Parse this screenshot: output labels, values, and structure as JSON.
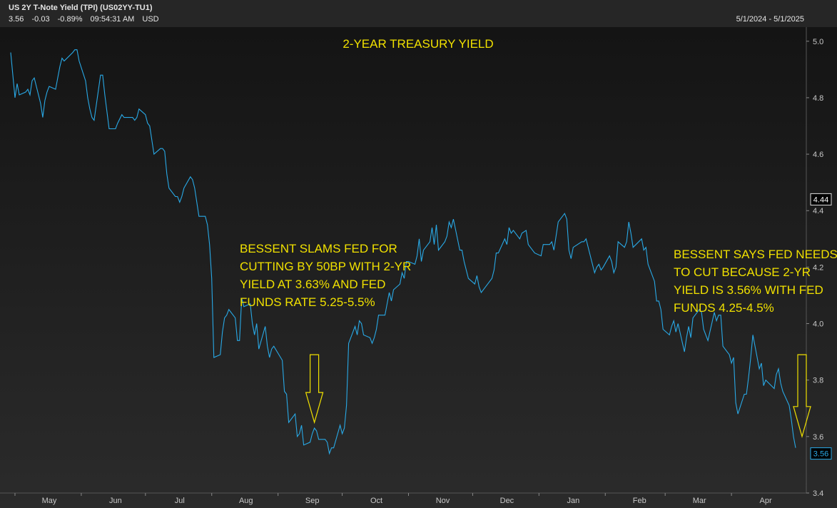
{
  "header": {
    "title": "US 2Y T-Note Yield (TPI) (US02YY-TU1)",
    "last": "3.56",
    "change": "-0.03",
    "change_pct": "-0.89%",
    "time": "09:54:31 AM",
    "currency": "USD",
    "date_range": "5/1/2024 - 5/1/2025"
  },
  "colors": {
    "line": "#29a9e6",
    "annotation": "#f0e000",
    "background": "#1c1c1c"
  },
  "chart_data": {
    "type": "line",
    "title": "2-YEAR TREASURY YIELD",
    "ylim": [
      3.4,
      5.05
    ],
    "y_ticks": [
      "3.4",
      "3.6",
      "3.8",
      "4.0",
      "4.2",
      "4.4",
      "4.6",
      "4.8",
      "5.0"
    ],
    "x_ticks": [
      {
        "label": "May",
        "date": "2024-05-01"
      },
      {
        "label": "Jun",
        "date": "2024-06-01"
      },
      {
        "label": "Jul",
        "date": "2024-07-01"
      },
      {
        "label": "Aug",
        "date": "2024-08-01"
      },
      {
        "label": "Sep",
        "date": "2024-09-01"
      },
      {
        "label": "Oct",
        "date": "2024-10-01"
      },
      {
        "label": "Nov",
        "date": "2024-11-01"
      },
      {
        "label": "Dec",
        "date": "2024-12-01"
      },
      {
        "label": "Jan",
        "date": "2025-01-01"
      },
      {
        "label": "Feb",
        "date": "2025-02-01"
      },
      {
        "label": "Mar",
        "date": "2025-03-01"
      },
      {
        "label": "Apr",
        "date": "2025-04-01"
      }
    ],
    "x_range": [
      "2024-04-24",
      "2025-05-06"
    ],
    "grid": false,
    "series": [
      {
        "values": [
          [
            "2024-04-29",
            4.96
          ],
          [
            "2024-04-30",
            4.88
          ],
          [
            "2024-05-01",
            4.8
          ],
          [
            "2024-05-02",
            4.85
          ],
          [
            "2024-05-03",
            4.81
          ],
          [
            "2024-05-06",
            4.82
          ],
          [
            "2024-05-07",
            4.83
          ],
          [
            "2024-05-08",
            4.81
          ],
          [
            "2024-05-09",
            4.86
          ],
          [
            "2024-05-10",
            4.87
          ],
          [
            "2024-05-13",
            4.78
          ],
          [
            "2024-05-14",
            4.73
          ],
          [
            "2024-05-15",
            4.79
          ],
          [
            "2024-05-16",
            4.82
          ],
          [
            "2024-05-17",
            4.84
          ],
          [
            "2024-05-20",
            4.83
          ],
          [
            "2024-05-21",
            4.87
          ],
          [
            "2024-05-22",
            4.91
          ],
          [
            "2024-05-23",
            4.94
          ],
          [
            "2024-05-24",
            4.93
          ],
          [
            "2024-05-28",
            4.96
          ],
          [
            "2024-05-29",
            4.97
          ],
          [
            "2024-05-30",
            4.97
          ],
          [
            "2024-05-31",
            4.93
          ],
          [
            "2024-06-03",
            4.86
          ],
          [
            "2024-06-04",
            4.8
          ],
          [
            "2024-06-05",
            4.76
          ],
          [
            "2024-06-06",
            4.73
          ],
          [
            "2024-06-07",
            4.72
          ],
          [
            "2024-06-10",
            4.88
          ],
          [
            "2024-06-11",
            4.88
          ],
          [
            "2024-06-12",
            4.81
          ],
          [
            "2024-06-13",
            4.75
          ],
          [
            "2024-06-14",
            4.69
          ],
          [
            "2024-06-17",
            4.69
          ],
          [
            "2024-06-18",
            4.71
          ],
          [
            "2024-06-20",
            4.74
          ],
          [
            "2024-06-21",
            4.73
          ],
          [
            "2024-06-24",
            4.73
          ],
          [
            "2024-06-25",
            4.73
          ],
          [
            "2024-06-26",
            4.72
          ],
          [
            "2024-06-27",
            4.73
          ],
          [
            "2024-06-28",
            4.76
          ],
          [
            "2024-07-01",
            4.74
          ],
          [
            "2024-07-02",
            4.71
          ],
          [
            "2024-07-03",
            4.7
          ],
          [
            "2024-07-05",
            4.6
          ],
          [
            "2024-07-08",
            4.62
          ],
          [
            "2024-07-09",
            4.62
          ],
          [
            "2024-07-10",
            4.61
          ],
          [
            "2024-07-11",
            4.53
          ],
          [
            "2024-07-12",
            4.48
          ],
          [
            "2024-07-15",
            4.45
          ],
          [
            "2024-07-16",
            4.45
          ],
          [
            "2024-07-17",
            4.43
          ],
          [
            "2024-07-18",
            4.45
          ],
          [
            "2024-07-19",
            4.48
          ],
          [
            "2024-07-22",
            4.52
          ],
          [
            "2024-07-23",
            4.51
          ],
          [
            "2024-07-24",
            4.48
          ],
          [
            "2024-07-25",
            4.43
          ],
          [
            "2024-07-26",
            4.38
          ],
          [
            "2024-07-29",
            4.38
          ],
          [
            "2024-07-30",
            4.35
          ],
          [
            "2024-07-31",
            4.28
          ],
          [
            "2024-08-01",
            4.16
          ],
          [
            "2024-08-02",
            3.88
          ],
          [
            "2024-08-05",
            3.89
          ],
          [
            "2024-08-06",
            3.97
          ],
          [
            "2024-08-07",
            4.02
          ],
          [
            "2024-08-08",
            4.03
          ],
          [
            "2024-08-09",
            4.05
          ],
          [
            "2024-08-12",
            4.02
          ],
          [
            "2024-08-13",
            3.94
          ],
          [
            "2024-08-14",
            3.94
          ],
          [
            "2024-08-15",
            4.09
          ],
          [
            "2024-08-16",
            4.06
          ],
          [
            "2024-08-19",
            4.07
          ],
          [
            "2024-08-20",
            4.0
          ],
          [
            "2024-08-21",
            3.96
          ],
          [
            "2024-08-22",
            4.0
          ],
          [
            "2024-08-23",
            3.91
          ],
          [
            "2024-08-26",
            3.99
          ],
          [
            "2024-08-27",
            3.92
          ],
          [
            "2024-08-28",
            3.88
          ],
          [
            "2024-08-29",
            3.91
          ],
          [
            "2024-08-30",
            3.92
          ],
          [
            "2024-09-03",
            3.87
          ],
          [
            "2024-09-04",
            3.76
          ],
          [
            "2024-09-05",
            3.75
          ],
          [
            "2024-09-06",
            3.65
          ],
          [
            "2024-09-09",
            3.68
          ],
          [
            "2024-09-10",
            3.6
          ],
          [
            "2024-09-11",
            3.61
          ],
          [
            "2024-09-12",
            3.64
          ],
          [
            "2024-09-13",
            3.57
          ],
          [
            "2024-09-16",
            3.58
          ],
          [
            "2024-09-17",
            3.61
          ],
          [
            "2024-09-18",
            3.63
          ],
          [
            "2024-09-19",
            3.62
          ],
          [
            "2024-09-20",
            3.59
          ],
          [
            "2024-09-23",
            3.59
          ],
          [
            "2024-09-24",
            3.58
          ],
          [
            "2024-09-25",
            3.54
          ],
          [
            "2024-09-26",
            3.56
          ],
          [
            "2024-09-27",
            3.56
          ],
          [
            "2024-09-30",
            3.64
          ],
          [
            "2024-10-01",
            3.61
          ],
          [
            "2024-10-02",
            3.63
          ],
          [
            "2024-10-03",
            3.71
          ],
          [
            "2024-10-04",
            3.93
          ],
          [
            "2024-10-07",
            3.99
          ],
          [
            "2024-10-08",
            3.96
          ],
          [
            "2024-10-09",
            4.01
          ],
          [
            "2024-10-10",
            4.0
          ],
          [
            "2024-10-11",
            3.96
          ],
          [
            "2024-10-14",
            3.95
          ],
          [
            "2024-10-15",
            3.93
          ],
          [
            "2024-10-16",
            3.95
          ],
          [
            "2024-10-17",
            3.98
          ],
          [
            "2024-10-18",
            4.03
          ],
          [
            "2024-10-21",
            4.03
          ],
          [
            "2024-10-22",
            4.07
          ],
          [
            "2024-10-23",
            4.11
          ],
          [
            "2024-10-24",
            4.08
          ],
          [
            "2024-10-25",
            4.12
          ],
          [
            "2024-10-28",
            4.14
          ],
          [
            "2024-10-29",
            4.18
          ],
          [
            "2024-10-30",
            4.16
          ],
          [
            "2024-10-31",
            4.22
          ],
          [
            "2024-11-01",
            4.22
          ],
          [
            "2024-11-04",
            4.21
          ],
          [
            "2024-11-05",
            4.24
          ],
          [
            "2024-11-06",
            4.3
          ],
          [
            "2024-11-07",
            4.22
          ],
          [
            "2024-11-08",
            4.26
          ],
          [
            "2024-11-11",
            4.29
          ],
          [
            "2024-11-12",
            4.34
          ],
          [
            "2024-11-13",
            4.28
          ],
          [
            "2024-11-14",
            4.35
          ],
          [
            "2024-11-15",
            4.26
          ],
          [
            "2024-11-18",
            4.29
          ],
          [
            "2024-11-19",
            4.31
          ],
          [
            "2024-11-20",
            4.36
          ],
          [
            "2024-11-21",
            4.34
          ],
          [
            "2024-11-22",
            4.37
          ],
          [
            "2024-11-25",
            4.26
          ],
          [
            "2024-11-26",
            4.26
          ],
          [
            "2024-11-27",
            4.22
          ],
          [
            "2024-11-29",
            4.16
          ],
          [
            "2024-12-02",
            4.14
          ],
          [
            "2024-12-03",
            4.17
          ],
          [
            "2024-12-04",
            4.13
          ],
          [
            "2024-12-05",
            4.11
          ],
          [
            "2024-12-06",
            4.12
          ],
          [
            "2024-12-09",
            4.15
          ],
          [
            "2024-12-10",
            4.16
          ],
          [
            "2024-12-11",
            4.19
          ],
          [
            "2024-12-12",
            4.25
          ],
          [
            "2024-12-13",
            4.25
          ],
          [
            "2024-12-16",
            4.3
          ],
          [
            "2024-12-17",
            4.28
          ],
          [
            "2024-12-18",
            4.34
          ],
          [
            "2024-12-19",
            4.32
          ],
          [
            "2024-12-20",
            4.33
          ],
          [
            "2024-12-23",
            4.3
          ],
          [
            "2024-12-24",
            4.32
          ],
          [
            "2024-12-26",
            4.33
          ],
          [
            "2024-12-27",
            4.28
          ],
          [
            "2024-12-30",
            4.25
          ],
          [
            "2025-01-02",
            4.24
          ],
          [
            "2025-01-03",
            4.28
          ],
          [
            "2025-01-06",
            4.28
          ],
          [
            "2025-01-07",
            4.29
          ],
          [
            "2025-01-08",
            4.26
          ],
          [
            "2025-01-10",
            4.36
          ],
          [
            "2025-01-13",
            4.39
          ],
          [
            "2025-01-14",
            4.37
          ],
          [
            "2025-01-15",
            4.26
          ],
          [
            "2025-01-16",
            4.23
          ],
          [
            "2025-01-17",
            4.27
          ],
          [
            "2025-01-21",
            4.29
          ],
          [
            "2025-01-22",
            4.29
          ],
          [
            "2025-01-23",
            4.3
          ],
          [
            "2025-01-24",
            4.27
          ],
          [
            "2025-01-27",
            4.18
          ],
          [
            "2025-01-28",
            4.2
          ],
          [
            "2025-01-29",
            4.21
          ],
          [
            "2025-01-30",
            4.19
          ],
          [
            "2025-01-31",
            4.2
          ],
          [
            "2025-02-03",
            4.24
          ],
          [
            "2025-02-04",
            4.22
          ],
          [
            "2025-02-05",
            4.18
          ],
          [
            "2025-02-06",
            4.2
          ],
          [
            "2025-02-07",
            4.29
          ],
          [
            "2025-02-10",
            4.27
          ],
          [
            "2025-02-11",
            4.29
          ],
          [
            "2025-02-12",
            4.36
          ],
          [
            "2025-02-13",
            4.32
          ],
          [
            "2025-02-14",
            4.27
          ],
          [
            "2025-02-18",
            4.3
          ],
          [
            "2025-02-19",
            4.26
          ],
          [
            "2025-02-20",
            4.27
          ],
          [
            "2025-02-21",
            4.21
          ],
          [
            "2025-02-24",
            4.15
          ],
          [
            "2025-02-25",
            4.08
          ],
          [
            "2025-02-26",
            4.08
          ],
          [
            "2025-02-27",
            4.05
          ],
          [
            "2025-02-28",
            3.98
          ],
          [
            "2025-03-03",
            3.96
          ],
          [
            "2025-03-04",
            3.99
          ],
          [
            "2025-03-05",
            4.01
          ],
          [
            "2025-03-06",
            3.97
          ],
          [
            "2025-03-07",
            4.0
          ],
          [
            "2025-03-10",
            3.9
          ],
          [
            "2025-03-11",
            3.95
          ],
          [
            "2025-03-12",
            3.99
          ],
          [
            "2025-03-13",
            3.95
          ],
          [
            "2025-03-14",
            4.02
          ],
          [
            "2025-03-17",
            4.05
          ],
          [
            "2025-03-18",
            4.04
          ],
          [
            "2025-03-19",
            3.98
          ],
          [
            "2025-03-20",
            3.96
          ],
          [
            "2025-03-21",
            3.94
          ],
          [
            "2025-03-24",
            4.04
          ],
          [
            "2025-03-25",
            4.01
          ],
          [
            "2025-03-26",
            4.03
          ],
          [
            "2025-03-27",
            4.03
          ],
          [
            "2025-03-28",
            3.92
          ],
          [
            "2025-03-31",
            3.89
          ],
          [
            "2025-04-01",
            3.86
          ],
          [
            "2025-04-02",
            3.88
          ],
          [
            "2025-04-03",
            3.72
          ],
          [
            "2025-04-04",
            3.68
          ],
          [
            "2025-04-07",
            3.75
          ],
          [
            "2025-04-08",
            3.75
          ],
          [
            "2025-04-09",
            3.81
          ],
          [
            "2025-04-10",
            3.88
          ],
          [
            "2025-04-11",
            3.96
          ],
          [
            "2025-04-14",
            3.84
          ],
          [
            "2025-04-15",
            3.86
          ],
          [
            "2025-04-16",
            3.78
          ],
          [
            "2025-04-17",
            3.8
          ],
          [
            "2025-04-21",
            3.77
          ],
          [
            "2025-04-22",
            3.82
          ],
          [
            "2025-04-23",
            3.84
          ],
          [
            "2025-04-24",
            3.79
          ],
          [
            "2025-04-25",
            3.76
          ],
          [
            "2025-04-28",
            3.71
          ],
          [
            "2025-04-29",
            3.66
          ],
          [
            "2025-04-30",
            3.6
          ],
          [
            "2025-05-01",
            3.56
          ]
        ]
      }
    ],
    "last_value_badge": "3.56",
    "crosshair_badge": "4.44",
    "annotations": [
      {
        "id": "september",
        "lines": [
          "BESSENT SLAMS FED FOR",
          "CUTTING BY 50BP WITH 2-YR",
          "YIELD AT 3.63% AND FED",
          "FUNDS RATE 5.25-5.5%"
        ],
        "arrow_date": "2024-09-18",
        "arrow_top": 3.89,
        "arrow_tip": 3.65
      },
      {
        "id": "april",
        "lines": [
          "BESSENT SAYS FED NEEDS",
          "TO CUT BECAUSE 2-YR",
          "YIELD IS 3.56% WITH FED",
          "FUNDS 4.25-4.5%"
        ],
        "arrow_date": "2025-05-04",
        "arrow_top": 3.89,
        "arrow_tip": 3.6
      }
    ]
  }
}
